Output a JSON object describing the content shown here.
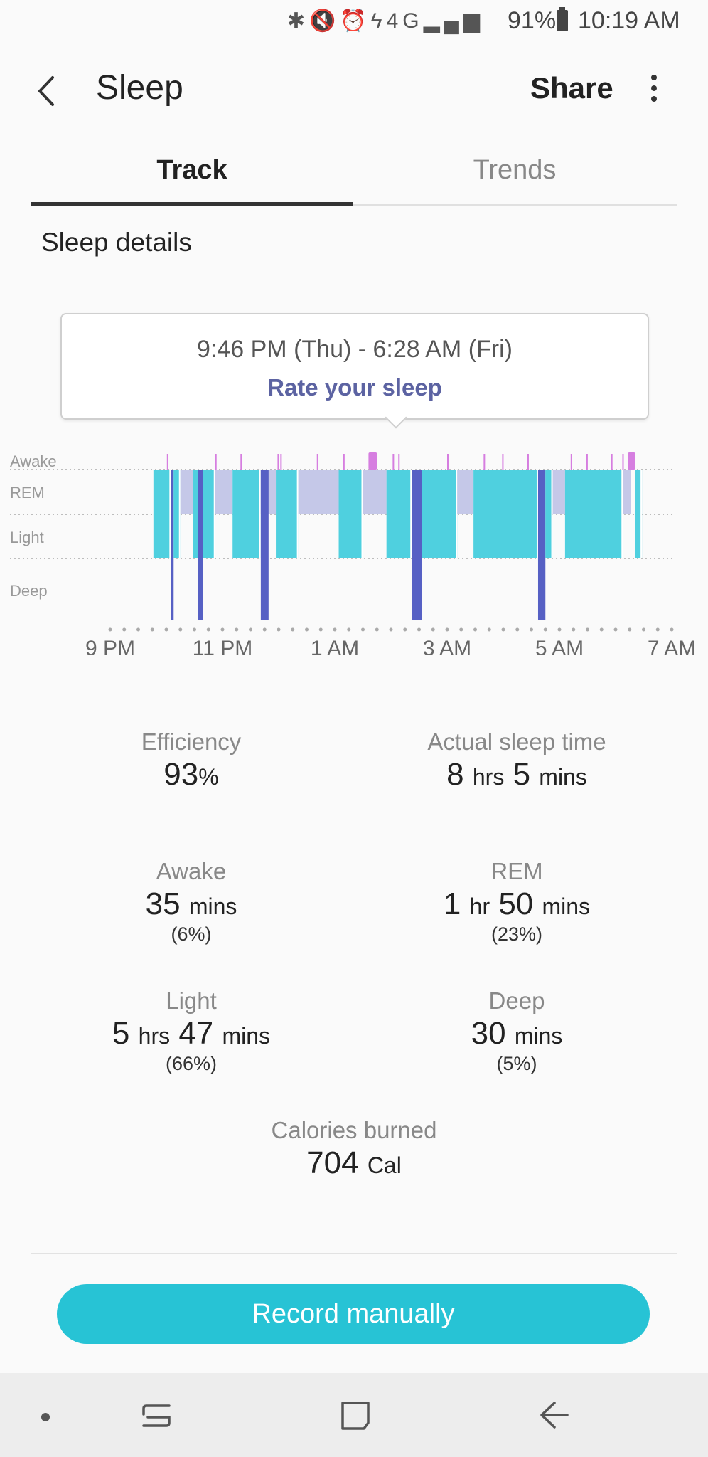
{
  "status_bar": {
    "icons": [
      "bluetooth-icon",
      "mute-icon",
      "alarm-icon",
      "flash-icon",
      "4g-icon",
      "signal-icon"
    ],
    "network": "4G",
    "battery_percent": "91%",
    "time": "10:19 AM"
  },
  "header": {
    "title": "Sleep",
    "share_label": "Share"
  },
  "tabs": [
    {
      "label": "Track",
      "selected": true
    },
    {
      "label": "Trends",
      "selected": false
    }
  ],
  "section_title": "Sleep details",
  "time_card": {
    "range": "9:46 PM (Thu) - 6:28 AM (Fri)",
    "rate_label": "Rate your sleep"
  },
  "chart_data": {
    "type": "timeline",
    "stages": [
      "Awake",
      "REM",
      "Light",
      "Deep"
    ],
    "x_ticks": [
      "9 PM",
      "11 PM",
      "1 AM",
      "3 AM",
      "5 AM",
      "7 AM"
    ],
    "x_range_hours": [
      21,
      31
    ],
    "colors": {
      "Awake": "#d67ee0",
      "REM": "#c5c8e8",
      "Light": "#4fd0df",
      "Deep": "#5660c4"
    },
    "segments": [
      {
        "stage": "Light",
        "start": 21.77,
        "end": 22.08
      },
      {
        "stage": "Deep",
        "start": 22.08,
        "end": 22.13
      },
      {
        "stage": "Light",
        "start": 22.13,
        "end": 22.25
      },
      {
        "stage": "REM",
        "start": 22.25,
        "end": 22.47
      },
      {
        "stage": "Light",
        "start": 22.47,
        "end": 22.87
      },
      {
        "stage": "REM",
        "start": 22.87,
        "end": 23.18
      },
      {
        "stage": "Light",
        "start": 23.18,
        "end": 23.68
      },
      {
        "stage": "REM",
        "start": 23.68,
        "end": 23.95
      },
      {
        "stage": "Light",
        "start": 23.95,
        "end": 24.35
      },
      {
        "stage": "REM",
        "start": 24.35,
        "end": 25.07
      },
      {
        "stage": "Light",
        "start": 25.07,
        "end": 25.5
      },
      {
        "stage": "REM",
        "start": 25.5,
        "end": 25.92
      },
      {
        "stage": "Light",
        "start": 25.92,
        "end": 26.37
      },
      {
        "stage": "Deep",
        "start": 26.37,
        "end": 26.5
      },
      {
        "stage": "Light",
        "start": 26.5,
        "end": 27.18
      },
      {
        "stage": "REM",
        "start": 27.18,
        "end": 27.47
      },
      {
        "stage": "Light",
        "start": 27.47,
        "end": 28.62
      },
      {
        "stage": "Deep",
        "start": 28.62,
        "end": 28.75
      },
      {
        "stage": "Light",
        "start": 28.75,
        "end": 28.88
      },
      {
        "stage": "REM",
        "start": 28.88,
        "end": 29.1
      },
      {
        "stage": "Light",
        "start": 29.1,
        "end": 30.13
      },
      {
        "stage": "REM",
        "start": 30.13,
        "end": 30.27
      },
      {
        "stage": "Light",
        "start": 30.35,
        "end": 30.47
      }
    ],
    "deep_spikes": [
      22.6,
      23.72,
      23.77,
      26.43,
      26.5,
      28.68
    ],
    "awake_spikes": [
      22.01,
      22.87,
      23.32,
      23.98,
      24.03,
      24.68,
      25.15,
      25.65,
      26.03,
      26.13,
      27.0,
      27.65,
      27.98,
      28.43,
      29.2,
      29.48,
      29.92,
      30.12
    ],
    "awake_blocks": [
      {
        "start": 25.6,
        "end": 25.75
      },
      {
        "start": 30.22,
        "end": 30.35
      }
    ]
  },
  "stats": {
    "efficiency": {
      "label": "Efficiency",
      "value": "93",
      "unit": "%"
    },
    "actual_sleep": {
      "label": "Actual sleep time",
      "hrs": "8",
      "hrs_unit": "hrs",
      "mins": "5",
      "mins_unit": "mins"
    },
    "awake": {
      "label": "Awake",
      "mins": "35",
      "mins_unit": "mins",
      "pct": "(6%)"
    },
    "rem": {
      "label": "REM",
      "hrs": "1",
      "hrs_unit": "hr",
      "mins": "50",
      "mins_unit": "mins",
      "pct": "(23%)"
    },
    "light": {
      "label": "Light",
      "hrs": "5",
      "hrs_unit": "hrs",
      "mins": "47",
      "mins_unit": "mins",
      "pct": "(66%)"
    },
    "deep": {
      "label": "Deep",
      "mins": "30",
      "mins_unit": "mins",
      "pct": "(5%)"
    },
    "calories": {
      "label": "Calories burned",
      "value": "704",
      "unit": "Cal"
    }
  },
  "record_button_label": "Record manually"
}
